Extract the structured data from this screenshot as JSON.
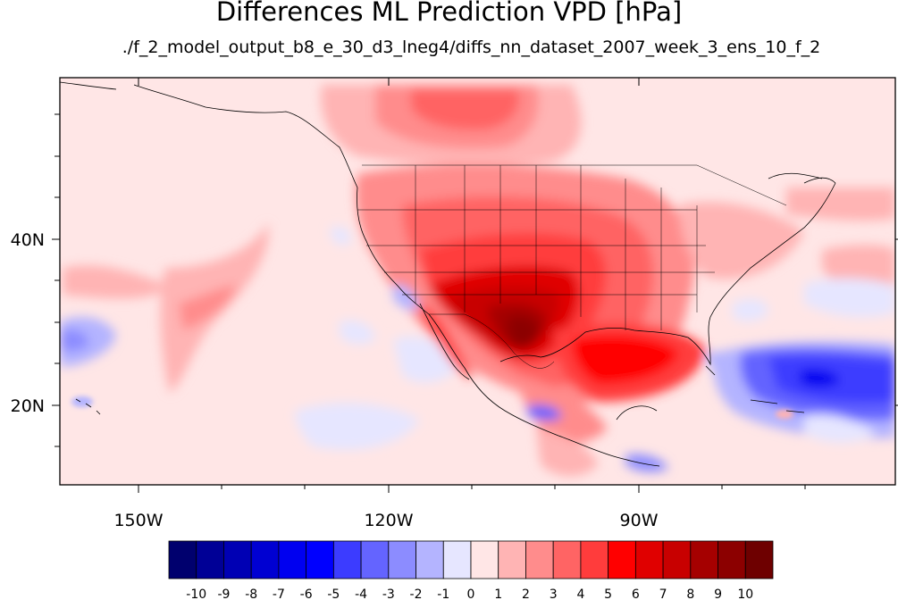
{
  "title": "Differences ML Prediction VPD [hPa]",
  "subtitle": "./f_2_model_output_b8_e_30_d3_lneg4/diffs_nn_dataset_2007_week_3_ens_10_f_2",
  "map": {
    "projection": "cylindrical equidistant",
    "region": "North America and adjacent Pacific / Atlantic",
    "lon_range": [
      -160,
      -62
    ],
    "lat_range": [
      10,
      59
    ],
    "lon_labels": [
      "150W",
      "120W",
      "90W"
    ],
    "lat_labels": [
      "40N",
      "20N"
    ]
  },
  "colorbar": {
    "labels": [
      "-10",
      "-9",
      "-8",
      "-7",
      "-6",
      "-5",
      "-4",
      "-3",
      "-2",
      "-1",
      "0",
      "1",
      "2",
      "3",
      "4",
      "5",
      "6",
      "7",
      "8",
      "9",
      "10"
    ],
    "colors": [
      "#00006e",
      "#000096",
      "#0000b4",
      "#0000d2",
      "#0000f0",
      "#0000ff",
      "#3c3cff",
      "#6464ff",
      "#8c8cff",
      "#b4b4ff",
      "#e6e6ff",
      "#ffe6e6",
      "#ffb4b4",
      "#ff8c8c",
      "#ff6464",
      "#ff3c3c",
      "#ff0000",
      "#e00000",
      "#c80000",
      "#a50000",
      "#8c0000",
      "#6e0000"
    ]
  }
}
